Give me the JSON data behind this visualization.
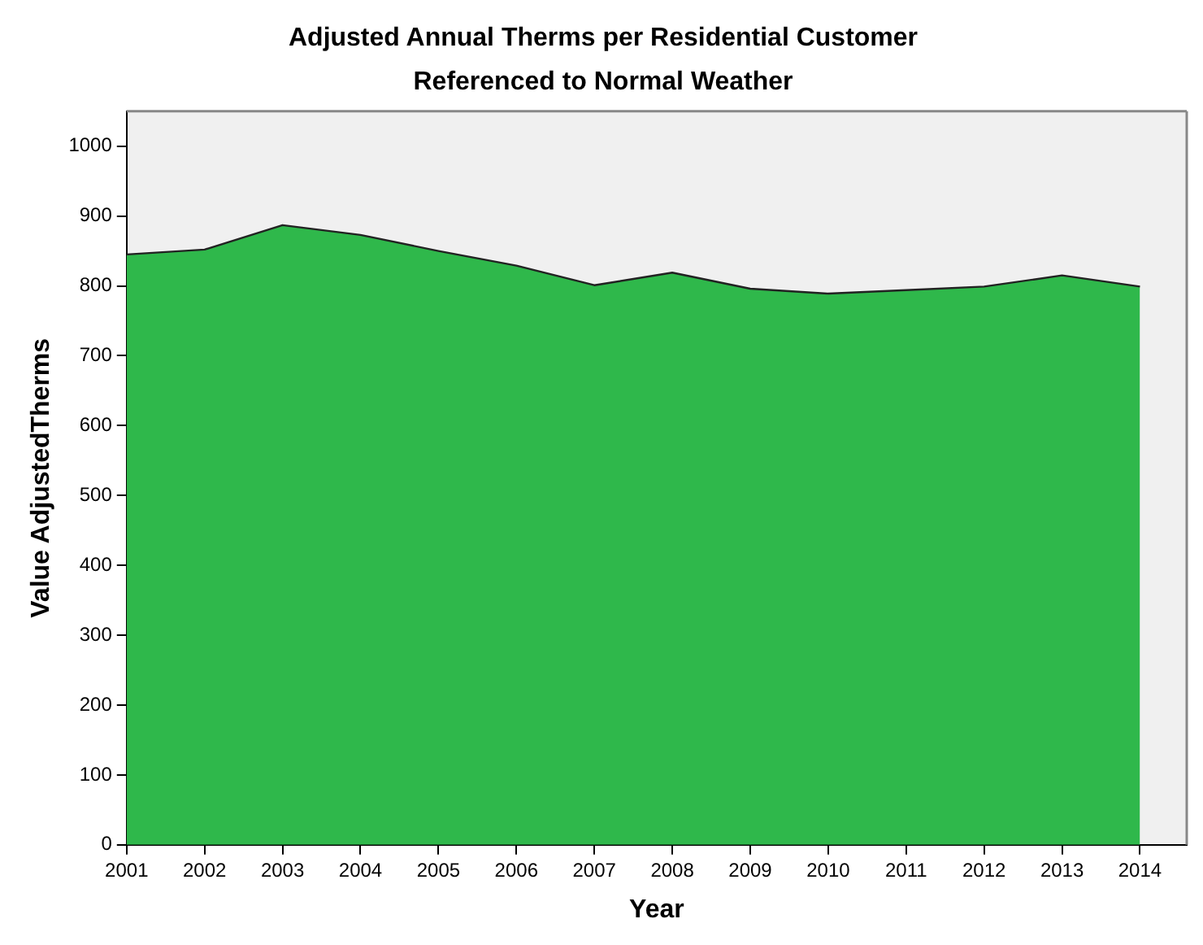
{
  "chart_data": {
    "type": "area",
    "title": "Adjusted Annual Therms per Residential Customer",
    "subtitle": "Referenced to Normal Weather",
    "xlabel": "Year",
    "ylabel": "Value AdjustedTherms",
    "x": [
      2001,
      2002,
      2003,
      2004,
      2005,
      2006,
      2007,
      2008,
      2009,
      2010,
      2011,
      2012,
      2013,
      2014
    ],
    "series": [
      {
        "color": "#2fb84b",
        "values": [
          845,
          852,
          887,
          873,
          850,
          829,
          801,
          819,
          796,
          789,
          794,
          799,
          815,
          799
        ]
      }
    ],
    "xlim": [
      2001,
      2014.6
    ],
    "xticks": [
      2001,
      2002,
      2003,
      2004,
      2005,
      2006,
      2007,
      2008,
      2009,
      2010,
      2011,
      2012,
      2013,
      2014
    ],
    "ylim": [
      0,
      1050
    ],
    "yticks": [
      0,
      100,
      200,
      300,
      400,
      500,
      600,
      700,
      800,
      900,
      1000
    ],
    "grid": false,
    "legend": false
  }
}
